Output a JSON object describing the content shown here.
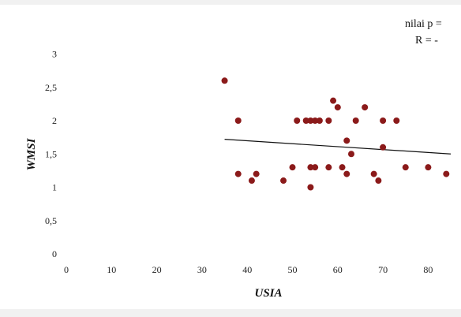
{
  "chart_data": {
    "type": "scatter",
    "title": "",
    "xlabel": "USIA",
    "ylabel": "WMSI",
    "xlim": [
      0,
      85
    ],
    "ylim": [
      0,
      3
    ],
    "x_ticks": [
      "0",
      "10",
      "20",
      "30",
      "40",
      "50",
      "60",
      "70",
      "80"
    ],
    "y_ticks": [
      "0",
      "0,5",
      "1",
      "1,5",
      "2",
      "2,5",
      "3"
    ],
    "annotations": [
      "nilai p =",
      "R = -"
    ],
    "grid": false,
    "trendline": {
      "x": [
        35,
        85
      ],
      "y": [
        1.72,
        1.5
      ]
    },
    "point_color": "#8b1a1a",
    "line_color": "#111111",
    "series": [
      {
        "x": [
          35,
          38,
          38,
          41,
          42,
          48,
          50,
          51,
          53,
          54,
          54,
          54,
          55,
          55,
          56,
          58,
          58,
          59,
          60,
          61,
          62,
          62,
          63,
          64,
          66,
          68,
          69,
          70,
          70,
          73,
          75,
          80,
          84
        ],
        "y": [
          2.6,
          2.0,
          1.2,
          1.1,
          1.2,
          1.1,
          1.3,
          2.0,
          2.0,
          2.0,
          1.3,
          1.0,
          2.0,
          1.3,
          2.0,
          2.0,
          1.3,
          2.3,
          2.2,
          1.3,
          1.7,
          1.2,
          1.5,
          2.0,
          2.2,
          1.2,
          1.1,
          2.0,
          1.6,
          2.0,
          1.3,
          1.3,
          1.2
        ]
      }
    ]
  }
}
